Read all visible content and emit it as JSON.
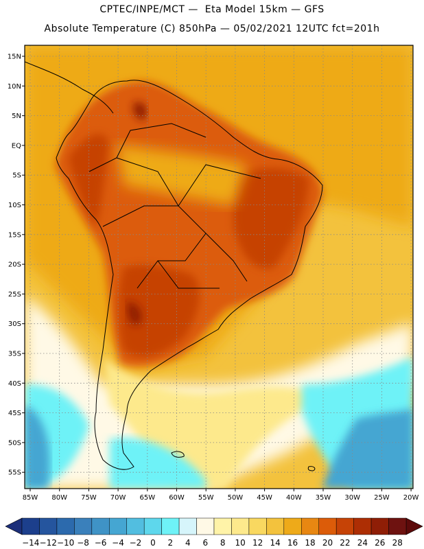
{
  "header": {
    "line1": "CPTEC/INPE/MCT —  Eta Model 15km — GFS",
    "line2": "Absolute Temperature (C) 850hPa — 05/02/2021 12UTC fct=201h"
  },
  "axes": {
    "lat_labels": [
      "15N",
      "10N",
      "5N",
      "EQ",
      "5S",
      "10S",
      "15S",
      "20S",
      "25S",
      "30S",
      "35S",
      "40S",
      "45S",
      "50S",
      "55S"
    ],
    "lon_labels": [
      "85W",
      "80W",
      "75W",
      "70W",
      "65W",
      "60W",
      "55W",
      "50W",
      "45W",
      "40W",
      "35W",
      "30W",
      "25W",
      "20W"
    ]
  },
  "colorbar": {
    "labels": [
      "-14",
      "-12",
      "-10",
      "-8",
      "-6",
      "-4",
      "-2",
      "0",
      "2",
      "4",
      "6",
      "8",
      "10",
      "12",
      "14",
      "16",
      "18",
      "20",
      "22",
      "24",
      "26",
      "28"
    ],
    "colors": [
      "#1c3f8c",
      "#25559e",
      "#2c6aad",
      "#3a80bb",
      "#3f93c6",
      "#45a6d2",
      "#52bee0",
      "#5ed7ec",
      "#6ef2f7",
      "#d6f5fb",
      "#fff9e6",
      "#fff3a8",
      "#fde98c",
      "#f9d860",
      "#f3c23d",
      "#eeaa19",
      "#e88712",
      "#dc5c09",
      "#c64306",
      "#ad2e04",
      "#8f1e06",
      "#6e1210"
    ],
    "left_cap_color": "#1c2f7a",
    "right_cap_color": "#5c0a0a"
  },
  "map_colors": {
    "ocean_north": "#eeaa19",
    "ocean_south_mid": "#f3c23d",
    "land_hot": "#dc5c09",
    "land_hotter": "#c64306",
    "land_hottest": "#8f1e06",
    "cold_south": "#45a6d2",
    "cool": "#6ef2f7",
    "pale": "#fff9e6",
    "yellow": "#fde98c"
  }
}
